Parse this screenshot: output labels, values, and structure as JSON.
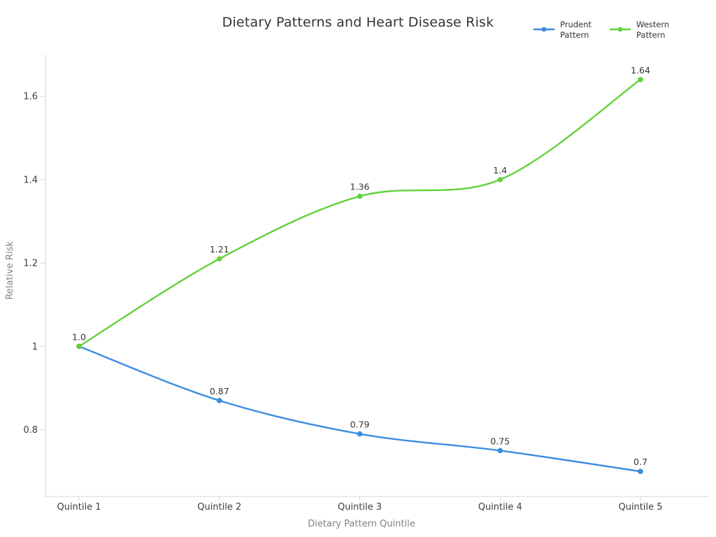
{
  "chart_data": {
    "type": "line",
    "title": "Dietary Patterns and Heart Disease Risk",
    "xlabel": "Dietary Pattern Quintile",
    "ylabel": "Relative Risk",
    "x": [
      "Quintile 1",
      "Quintile 2",
      "Quintile 3",
      "Quintile 4",
      "Quintile 5"
    ],
    "series": [
      {
        "name": "Prudent Pattern",
        "color": "#3c8ce0",
        "values": [
          1.0,
          0.87,
          0.79,
          0.75,
          0.7
        ],
        "point_labels": [
          "",
          "0.87",
          "0.79",
          "0.75",
          "0.7"
        ]
      },
      {
        "name": "Western Pattern",
        "color": "#62d13b",
        "values": [
          1.0,
          1.21,
          1.36,
          1.4,
          1.64
        ],
        "point_labels": [
          "1.0",
          "1.21",
          "1.36",
          "1.4",
          "1.64"
        ]
      }
    ],
    "yticks": [
      0.8,
      1.0,
      1.2,
      1.4,
      1.6
    ],
    "ytick_labels": [
      "0.8",
      "1",
      "1.2",
      "1.4",
      "1.6"
    ],
    "ylim": [
      0.64,
      1.7
    ],
    "line_shape": "spline",
    "grid": false,
    "legend_position": "top-right",
    "style": {
      "axis_color": "#d6d6d6",
      "tick_label_color": "#3d3d3d",
      "point_label_color": "#333333",
      "title_color": "#333333",
      "axis_title_color": "#7f8287",
      "background": "#ffffff"
    }
  }
}
